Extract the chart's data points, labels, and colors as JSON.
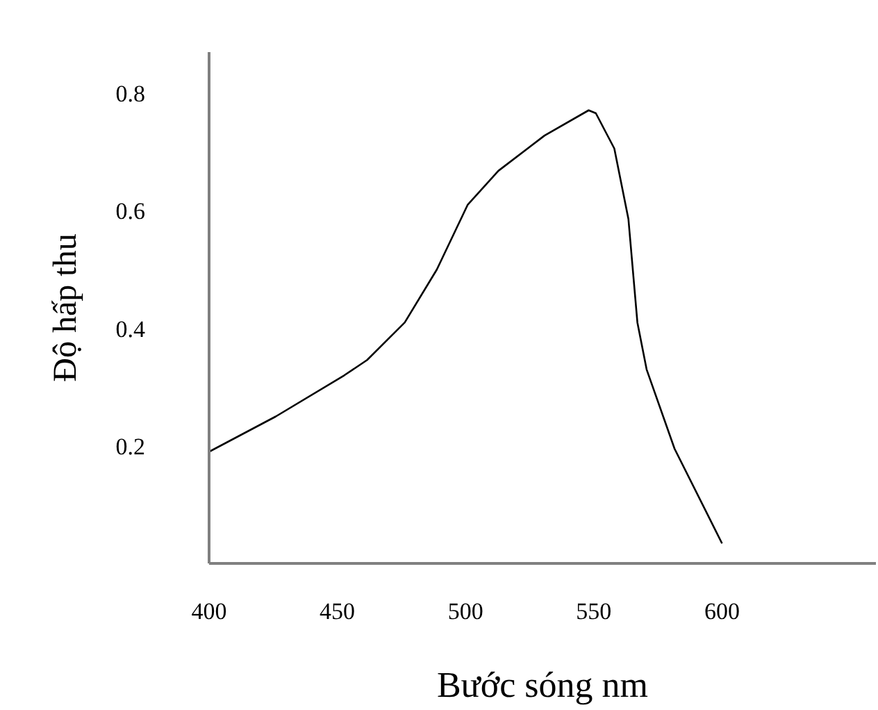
{
  "chart_data": {
    "type": "line",
    "xlabel": "Bước sóng nm",
    "ylabel": "Độ hấp thu",
    "x": [
      400,
      426,
      452.7,
      461.6,
      476.3,
      488.8,
      500.8,
      512.8,
      530.8,
      548,
      550.8,
      558,
      563.5,
      567,
      570.6,
      581.5,
      600
    ],
    "series": [
      {
        "color": "#000000",
        "values": [
          0.19,
          0.25,
          0.32,
          0.346,
          0.41,
          0.5,
          0.61,
          0.668,
          0.728,
          0.771,
          0.766,
          0.706,
          0.586,
          0.41,
          0.33,
          0.195,
          0.034
        ]
      }
    ],
    "xlim": [
      400,
      660
    ],
    "ylim": [
      0,
      0.87
    ],
    "xticks": [
      400,
      450,
      500,
      550,
      600
    ],
    "yticks": [
      0.2,
      0.4,
      0.6,
      0.8
    ],
    "grid": false,
    "marker": "none",
    "line_style": "solid"
  }
}
